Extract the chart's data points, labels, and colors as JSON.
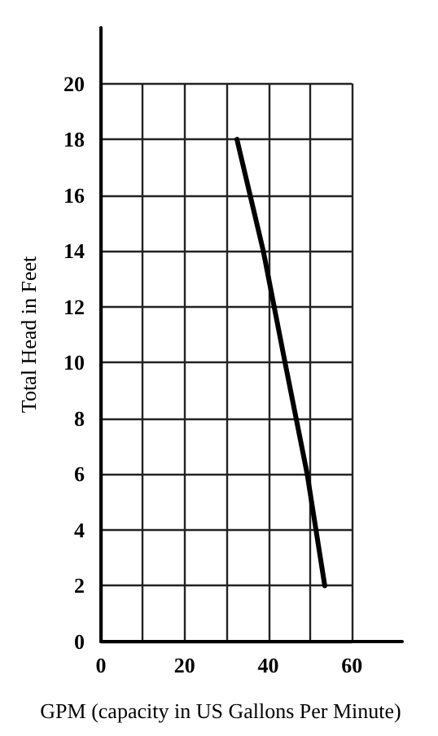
{
  "chart_data": {
    "type": "line",
    "xlabel": "GPM (capacity in US Gallons Per Minute)",
    "ylabel": "Total Head in Feet",
    "x": [
      32.5,
      38.8,
      44,
      49.3,
      53.5
    ],
    "series": [
      {
        "color": "#000000",
        "values": [
          18,
          14,
          10,
          6,
          2
        ]
      }
    ],
    "xlim": [
      0,
      72
    ],
    "ylim": [
      0,
      22
    ],
    "xticks": [
      0,
      {
        "value": 10,
        "label": null
      },
      20,
      {
        "value": 30,
        "label": null
      },
      40,
      {
        "value": 50,
        "label": null
      },
      60
    ],
    "yticks": [
      0,
      2,
      4,
      6,
      8,
      10,
      12,
      14,
      16,
      18,
      20
    ],
    "grid": true,
    "marker": "none",
    "line_style": "solid"
  }
}
